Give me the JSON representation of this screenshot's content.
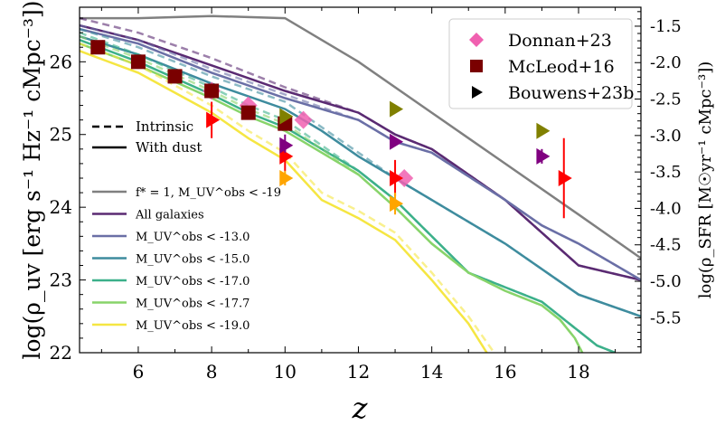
{
  "chart_data": {
    "type": "line",
    "xlabel": "z",
    "ylabel": "log(ρ_uv [erg s⁻¹ Hz⁻¹ cMpc⁻³])",
    "ylabel_right": "log(ρ_SFR [M☉yr⁻¹ cMpc⁻³])",
    "xlim": [
      4.4,
      19.7
    ],
    "ylim": [
      22,
      26.75
    ],
    "ylim_right": [
      -5.98,
      -1.24
    ],
    "x_ticks": [
      "6",
      "8",
      "10",
      "12",
      "14",
      "16",
      "18"
    ],
    "y_ticks": [
      "22",
      "23",
      "24",
      "25",
      "26"
    ],
    "y_ticks_right": [
      "-1.5",
      "-2.0",
      "-2.5",
      "-3.0",
      "-3.5",
      "-4.0",
      "-4.5",
      "-5.0",
      "-5.5"
    ],
    "line_style_legend": [
      {
        "label": "Intrinsic",
        "style": "dashed"
      },
      {
        "label": "With dust",
        "style": "solid"
      }
    ],
    "series": [
      {
        "name": "f* = 1, M_UV^obs < -19",
        "color": "#808080",
        "x": [
          4.4,
          6,
          8,
          10,
          12,
          14,
          16,
          18,
          19.7
        ],
        "y": [
          26.6,
          26.6,
          26.63,
          26.6,
          26.0,
          25.3,
          24.6,
          23.9,
          23.3
        ]
      },
      {
        "name": "All galaxies",
        "color": "#5a2a72",
        "x": [
          4.4,
          6,
          8,
          10,
          12,
          13,
          14,
          16,
          18,
          19.7
        ],
        "y": [
          26.5,
          26.3,
          25.95,
          25.6,
          25.3,
          25.0,
          24.8,
          24.1,
          23.2,
          23.0
        ],
        "dashed_y": [
          26.6,
          26.4,
          26.05,
          25.65,
          25.3,
          25.0,
          24.8,
          24.1,
          23.2,
          23.0
        ]
      },
      {
        "name": "M_UV^obs < -13.0",
        "color": "#6a6fa6",
        "x": [
          4.4,
          6,
          8,
          10,
          12,
          13,
          14,
          16,
          17,
          18,
          19.7
        ],
        "y": [
          26.45,
          26.25,
          25.85,
          25.5,
          25.2,
          24.9,
          24.75,
          24.1,
          23.75,
          23.5,
          23.0
        ],
        "dashed_y": [
          26.5,
          26.3,
          25.9,
          25.55,
          25.2,
          24.9,
          24.75,
          24.1,
          23.75,
          23.5,
          23.0
        ]
      },
      {
        "name": "M_UV^obs < -15.0",
        "color": "#3e8c9e",
        "x": [
          4.4,
          6,
          8,
          10,
          11,
          12,
          13,
          14,
          16,
          18,
          19.7
        ],
        "y": [
          26.35,
          26.1,
          25.7,
          25.35,
          25.05,
          24.7,
          24.4,
          24.1,
          23.5,
          22.8,
          22.5
        ],
        "dashed_y": [
          26.45,
          26.2,
          25.8,
          25.45,
          25.1,
          24.75,
          24.4,
          24.1,
          23.5,
          22.8,
          22.5
        ]
      },
      {
        "name": "M_UV^obs < -17.0",
        "color": "#3cb08a",
        "x": [
          4.4,
          6,
          8,
          9,
          10,
          11,
          12,
          13,
          14,
          15,
          16,
          17,
          17.5,
          18,
          18.5,
          19
        ],
        "y": [
          26.3,
          26.0,
          25.55,
          25.3,
          25.1,
          24.8,
          24.5,
          24.1,
          23.6,
          23.1,
          22.9,
          22.7,
          22.5,
          22.3,
          22.1,
          22.0
        ],
        "dashed_y": [
          26.4,
          26.1,
          25.65,
          25.4,
          25.2,
          24.85,
          24.5,
          24.1,
          23.6,
          23.1,
          22.9,
          22.7,
          22.5,
          22.3,
          22.1,
          22.0
        ]
      },
      {
        "name": "M_UV^obs < -17.7",
        "color": "#88d46a",
        "x": [
          4.4,
          6,
          8,
          9,
          10,
          11,
          12,
          13,
          14,
          15,
          16,
          17,
          17.5,
          17.9,
          18.1
        ],
        "y": [
          26.25,
          25.95,
          25.5,
          25.25,
          25.05,
          24.75,
          24.45,
          24.0,
          23.5,
          23.1,
          22.85,
          22.65,
          22.45,
          22.2,
          22.0
        ],
        "dashed_y": [
          26.35,
          26.05,
          25.6,
          25.35,
          25.15,
          24.8,
          24.45,
          24.0,
          23.5,
          23.1,
          22.85,
          22.65,
          22.45,
          22.2,
          22.0
        ]
      },
      {
        "name": "M_UV^obs < -19.0",
        "color": "#f5e642",
        "x": [
          4.4,
          6,
          8,
          9,
          10,
          11,
          12,
          13,
          14,
          15,
          15.5
        ],
        "y": [
          26.15,
          25.85,
          25.3,
          24.95,
          24.65,
          24.1,
          23.85,
          23.55,
          23.0,
          22.4,
          22.0
        ],
        "dashed_x": [
          4.4,
          6,
          8,
          9,
          10,
          11,
          12,
          13,
          14,
          15,
          15.7
        ],
        "dashed_y": [
          26.25,
          25.95,
          25.4,
          25.05,
          24.75,
          24.2,
          23.95,
          23.65,
          23.1,
          22.5,
          22.0
        ]
      }
    ],
    "observations": [
      {
        "name": "Donnan+23",
        "marker": "diamond",
        "color": "#f060b0",
        "points": [
          {
            "x": 8.0,
            "y": 25.6
          },
          {
            "x": 9.0,
            "y": 25.4
          },
          {
            "x": 10.5,
            "y": 25.2
          },
          {
            "x": 13.25,
            "y": 24.4
          }
        ]
      },
      {
        "name": "McLeod+16",
        "marker": "square",
        "color": "#7a0000",
        "points": [
          {
            "x": 4.9,
            "y": 26.2
          },
          {
            "x": 6.0,
            "y": 26.0
          },
          {
            "x": 7.0,
            "y": 25.8
          },
          {
            "x": 8.0,
            "y": 25.6
          },
          {
            "x": 9.0,
            "y": 25.3
          },
          {
            "x": 10.0,
            "y": 25.15
          }
        ]
      },
      {
        "name": "Bouwens+23b",
        "marker": "triangle-right",
        "color": "#000000",
        "points": [
          {
            "x": 8.0,
            "y": 25.2,
            "color": "#ff0000",
            "err": [
              24.95,
              25.45
            ]
          },
          {
            "x": 10.0,
            "y": 24.7,
            "color": "#ff0000",
            "err": [
              24.5,
              24.9
            ]
          },
          {
            "x": 13.0,
            "y": 24.4,
            "color": "#ff0000",
            "err": [
              24.15,
              24.65
            ]
          },
          {
            "x": 17.6,
            "y": 24.4,
            "color": "#ff0000",
            "err": [
              23.85,
              24.95
            ]
          },
          {
            "x": 10.0,
            "y": 24.85,
            "color": "#800080",
            "err": [
              24.75,
              25.0
            ]
          },
          {
            "x": 13.0,
            "y": 24.9,
            "color": "#800080",
            "err": [
              24.85,
              24.95
            ]
          },
          {
            "x": 17.0,
            "y": 24.7,
            "color": "#800080",
            "err": [
              24.6,
              24.8
            ]
          },
          {
            "x": 10.0,
            "y": 24.4,
            "color": "#ffa500",
            "err": [
              24.3,
              24.5
            ]
          },
          {
            "x": 13.0,
            "y": 24.05,
            "color": "#ffa500",
            "err": [
              23.9,
              24.2
            ]
          },
          {
            "x": 10.0,
            "y": 25.25,
            "color": "#808000",
            "err": [
              25.2,
              25.3
            ]
          },
          {
            "x": 13.0,
            "y": 25.35,
            "color": "#808000",
            "err": [
              25.3,
              25.4
            ]
          },
          {
            "x": 17.0,
            "y": 25.05,
            "color": "#808000",
            "err": [
              25.0,
              25.1
            ]
          }
        ]
      }
    ],
    "legend_upper_right": [
      "Donnan+23",
      "McLeod+16",
      "Bouwens+23b"
    ],
    "legend_left": [
      "f* = 1, M_UV^obs < -19",
      "All galaxies",
      "M_UV^obs < -13.0",
      "M_UV^obs < -15.0",
      "M_UV^obs < -17.0",
      "M_UV^obs < -17.7",
      "M_UV^obs < -19.0"
    ]
  }
}
